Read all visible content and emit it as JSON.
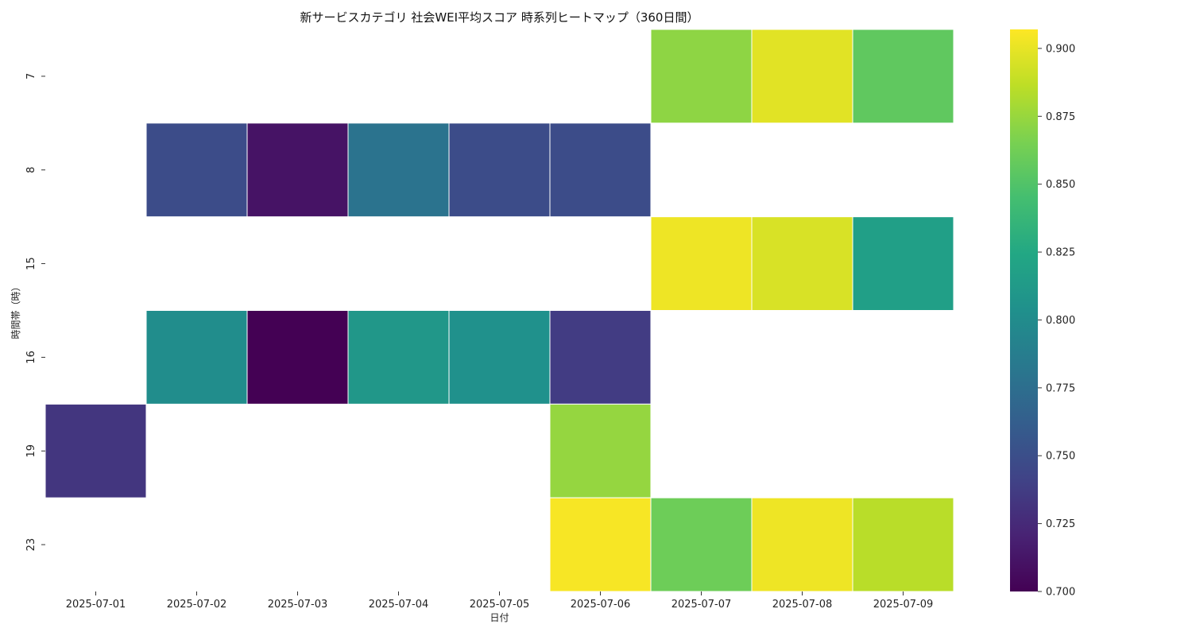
{
  "chart_data": {
    "type": "heatmap",
    "title": "新サービスカテゴリ 社会WEI平均スコア 時系列ヒートマップ（360日間）",
    "xlabel": "日付",
    "ylabel": "時間帯（時）",
    "x": [
      "2025-07-01",
      "2025-07-02",
      "2025-07-03",
      "2025-07-04",
      "2025-07-05",
      "2025-07-06",
      "2025-07-07",
      "2025-07-08",
      "2025-07-09"
    ],
    "y": [
      "7",
      "8",
      "15",
      "16",
      "19",
      "23"
    ],
    "values": [
      [
        null,
        null,
        null,
        null,
        null,
        null,
        0.872,
        0.898,
        0.856
      ],
      [
        null,
        0.748,
        0.711,
        0.779,
        0.748,
        0.748,
        null,
        null,
        null
      ],
      [
        null,
        null,
        null,
        null,
        null,
        null,
        0.902,
        0.895,
        0.817
      ],
      [
        null,
        0.801,
        0.7,
        0.81,
        0.804,
        0.737,
        null,
        null,
        null
      ],
      [
        0.733,
        null,
        null,
        null,
        null,
        0.874,
        null,
        null,
        null
      ],
      [
        null,
        null,
        null,
        null,
        null,
        0.905,
        0.861,
        0.902,
        0.885
      ]
    ],
    "colorscale": "viridis",
    "vmin": 0.7,
    "vmax": 0.907,
    "colorbar_ticks": [
      "0.700",
      "0.725",
      "0.750",
      "0.775",
      "0.800",
      "0.825",
      "0.850",
      "0.875",
      "0.900"
    ],
    "grid": false
  }
}
